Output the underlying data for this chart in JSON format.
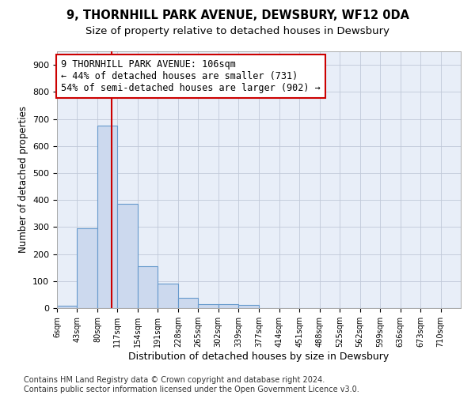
{
  "title": "9, THORNHILL PARK AVENUE, DEWSBURY, WF12 0DA",
  "subtitle": "Size of property relative to detached houses in Dewsbury",
  "xlabel": "Distribution of detached houses by size in Dewsbury",
  "ylabel": "Number of detached properties",
  "bar_color": "#ccd9ee",
  "bar_edge_color": "#6699cc",
  "grid_color": "#c0c8d8",
  "bg_color": "#e8eef8",
  "vline_color": "#cc0000",
  "vline_x": 106,
  "annotation_text": "9 THORNHILL PARK AVENUE: 106sqm\n← 44% of detached houses are smaller (731)\n54% of semi-detached houses are larger (902) →",
  "annotation_box_color": "#ffffff",
  "annotation_box_edge": "#cc0000",
  "bin_edges": [
    6,
    43,
    80,
    117,
    154,
    191,
    228,
    265,
    302,
    339,
    377,
    414,
    451,
    488,
    525,
    562,
    599,
    636,
    673,
    710,
    747
  ],
  "bar_heights": [
    10,
    295,
    675,
    385,
    155,
    90,
    38,
    15,
    15,
    11,
    0,
    0,
    0,
    0,
    0,
    0,
    0,
    0,
    0,
    0
  ],
  "ylim": [
    0,
    950
  ],
  "yticks": [
    0,
    100,
    200,
    300,
    400,
    500,
    600,
    700,
    800,
    900
  ],
  "footer_text": "Contains HM Land Registry data © Crown copyright and database right 2024.\nContains public sector information licensed under the Open Government Licence v3.0.",
  "title_fontsize": 10.5,
  "subtitle_fontsize": 9.5,
  "xlabel_fontsize": 9,
  "ylabel_fontsize": 8.5,
  "footer_fontsize": 7,
  "annotation_fontsize": 8.5
}
